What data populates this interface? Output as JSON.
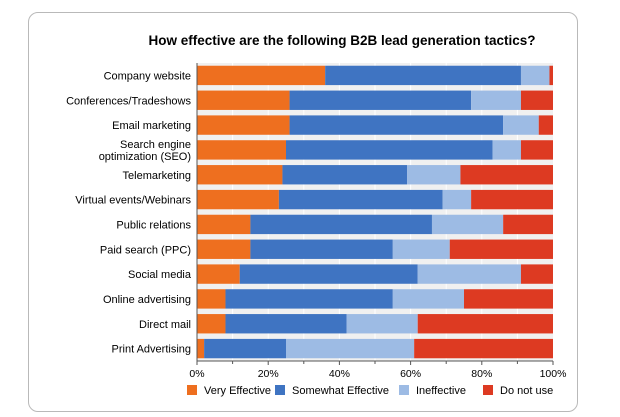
{
  "chart_data": {
    "type": "bar",
    "orientation": "horizontal",
    "stacked": true,
    "title": "How effective are the following B2B lead generation tactics?",
    "categories": [
      "Company website",
      "Conferences/Tradeshows",
      "Email marketing",
      "Search engine\noptimization (SEO)",
      "Telemarketing",
      "Virtual events/Webinars",
      "Public relations",
      "Paid search (PPC)",
      "Social media",
      "Online advertising",
      "Direct mail",
      "Print Advertising"
    ],
    "series": [
      {
        "name": "Very Effective",
        "color": "#ee6f1f",
        "values": [
          36,
          26,
          26,
          25,
          24,
          23,
          15,
          15,
          12,
          8,
          8,
          2
        ]
      },
      {
        "name": "Somewhat Effective",
        "color": "#3f74c2",
        "values": [
          55,
          51,
          60,
          58,
          35,
          46,
          51,
          40,
          50,
          47,
          34,
          23
        ]
      },
      {
        "name": "Ineffective",
        "color": "#9dbbe4",
        "values": [
          8,
          14,
          10,
          8,
          15,
          8,
          20,
          16,
          29,
          20,
          20,
          36
        ]
      },
      {
        "name": "Do not use",
        "color": "#dd3a22",
        "values": [
          1,
          9,
          4,
          9,
          26,
          23,
          14,
          29,
          9,
          25,
          38,
          39
        ]
      }
    ],
    "x_ticks": [
      "0%",
      "20%",
      "40%",
      "60%",
      "80%",
      "100%"
    ],
    "xlim": [
      0,
      100
    ],
    "grid": true,
    "legend": "bottom",
    "plot_background": "#f0f0f0",
    "grid_color": "#ffffff"
  }
}
